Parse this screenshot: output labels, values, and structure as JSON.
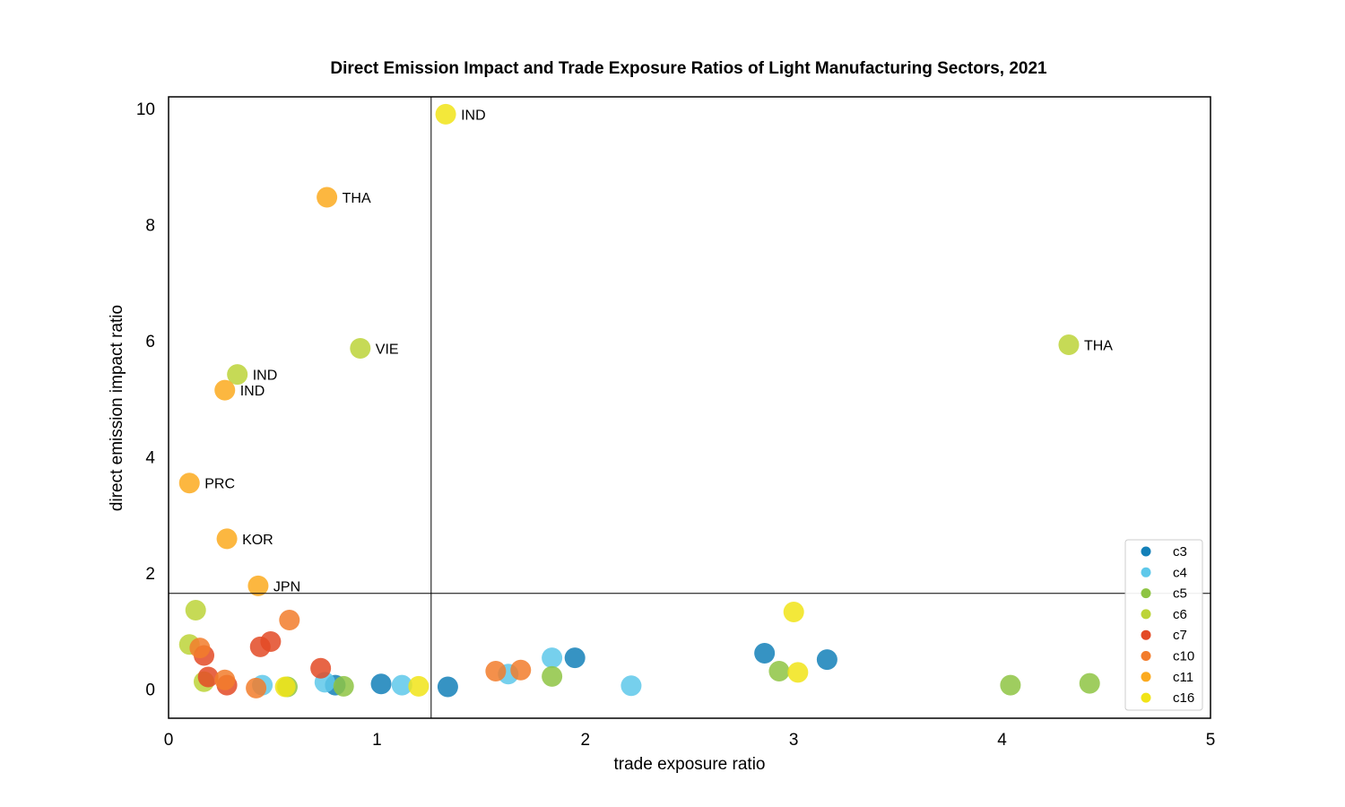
{
  "chart_data": {
    "type": "scatter",
    "title": "Direct Emission Impact and Trade Exposure Ratios of Light Manufacturing Sectors, 2021",
    "xlabel": "trade exposure ratio",
    "ylabel": "direct emission impact ratio",
    "xlim": [
      0,
      5
    ],
    "ylim": [
      -0.5,
      10.2
    ],
    "xticks": [
      0,
      1,
      2,
      3,
      4,
      5
    ],
    "yticks": [
      0,
      2,
      4,
      6,
      8,
      10
    ],
    "grid": false,
    "legend_position": "bottom-right",
    "reference_lines": {
      "x": 1.26,
      "y": 1.65
    },
    "series": [
      {
        "name": "c3",
        "color": "#1380b8",
        "points": [
          {
            "x": 0.8,
            "y": 0.07
          },
          {
            "x": 1.02,
            "y": 0.09
          },
          {
            "x": 1.34,
            "y": 0.04
          },
          {
            "x": 1.95,
            "y": 0.54
          },
          {
            "x": 2.86,
            "y": 0.62
          },
          {
            "x": 3.16,
            "y": 0.51
          }
        ]
      },
      {
        "name": "c4",
        "color": "#5ec8ea",
        "points": [
          {
            "x": 0.45,
            "y": 0.07
          },
          {
            "x": 0.75,
            "y": 0.12
          },
          {
            "x": 1.12,
            "y": 0.07
          },
          {
            "x": 1.63,
            "y": 0.26
          },
          {
            "x": 1.84,
            "y": 0.54
          },
          {
            "x": 2.22,
            "y": 0.06
          }
        ]
      },
      {
        "name": "c5",
        "color": "#8ec443",
        "points": [
          {
            "x": 0.57,
            "y": 0.04
          },
          {
            "x": 0.84,
            "y": 0.05
          },
          {
            "x": 1.84,
            "y": 0.22
          },
          {
            "x": 2.93,
            "y": 0.31
          },
          {
            "x": 4.04,
            "y": 0.07
          },
          {
            "x": 4.42,
            "y": 0.1
          }
        ]
      },
      {
        "name": "c6",
        "color": "#bcd438",
        "points": [
          {
            "x": 0.1,
            "y": 0.77
          },
          {
            "x": 0.13,
            "y": 1.36
          },
          {
            "x": 0.17,
            "y": 0.13
          },
          {
            "x": 0.33,
            "y": 5.42,
            "label": "IND"
          },
          {
            "x": 0.92,
            "y": 5.87,
            "label": "VIE"
          },
          {
            "x": 4.32,
            "y": 5.93,
            "label": "THA"
          }
        ]
      },
      {
        "name": "c7",
        "color": "#e34a26",
        "points": [
          {
            "x": 0.17,
            "y": 0.58
          },
          {
            "x": 0.19,
            "y": 0.21
          },
          {
            "x": 0.28,
            "y": 0.07
          },
          {
            "x": 0.44,
            "y": 0.73
          },
          {
            "x": 0.49,
            "y": 0.82
          },
          {
            "x": 0.73,
            "y": 0.36
          }
        ]
      },
      {
        "name": "c10",
        "color": "#f27c2c",
        "points": [
          {
            "x": 0.15,
            "y": 0.71
          },
          {
            "x": 0.27,
            "y": 0.16
          },
          {
            "x": 0.42,
            "y": 0.02
          },
          {
            "x": 0.58,
            "y": 1.19
          },
          {
            "x": 1.57,
            "y": 0.31
          },
          {
            "x": 1.69,
            "y": 0.33
          }
        ]
      },
      {
        "name": "c11",
        "color": "#fbaa1f",
        "points": [
          {
            "x": 0.1,
            "y": 3.55,
            "label": "PRC"
          },
          {
            "x": 0.28,
            "y": 2.59,
            "label": "KOR"
          },
          {
            "x": 0.43,
            "y": 1.78,
            "label": "JPN"
          },
          {
            "x": 0.27,
            "y": 5.15,
            "label": "IND"
          },
          {
            "x": 0.76,
            "y": 8.47,
            "label": "THA"
          }
        ]
      },
      {
        "name": "c16",
        "color": "#f1e417",
        "points": [
          {
            "x": 0.56,
            "y": 0.04
          },
          {
            "x": 1.2,
            "y": 0.05
          },
          {
            "x": 1.33,
            "y": 9.9,
            "label": "IND"
          },
          {
            "x": 3.0,
            "y": 1.33
          },
          {
            "x": 3.02,
            "y": 0.29
          }
        ]
      }
    ]
  }
}
